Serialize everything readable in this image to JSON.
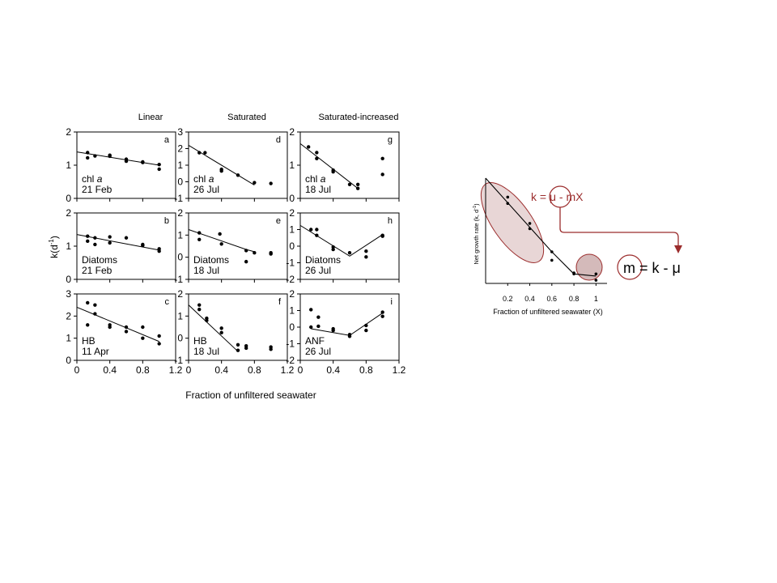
{
  "figure": {
    "shared_ylabel": "k(d",
    "shared_ylabel_sup": "-1",
    "shared_ylabel_end": ")",
    "shared_xlabel": "Fraction of unfiltered seawater",
    "column_titles": [
      "Linear",
      "Saturated",
      "Saturated-increased"
    ]
  },
  "chart_data": [
    {
      "type": "scatter",
      "panel": "a",
      "label_lines": [
        "chl a",
        "21 Feb"
      ],
      "xlim": [
        0,
        1.2
      ],
      "ylim": [
        0,
        2
      ],
      "yticks": [
        0,
        1,
        2
      ],
      "points": [
        [
          0.13,
          1.38
        ],
        [
          0.13,
          1.22
        ],
        [
          0.22,
          1.28
        ],
        [
          0.4,
          1.3
        ],
        [
          0.4,
          1.27
        ],
        [
          0.6,
          1.18
        ],
        [
          0.6,
          1.12
        ],
        [
          0.8,
          1.1
        ],
        [
          0.8,
          1.08
        ],
        [
          1.0,
          1.02
        ],
        [
          1.0,
          0.88
        ]
      ],
      "fit": [
        [
          0,
          1.4
        ],
        [
          1.0,
          1.0
        ]
      ]
    },
    {
      "type": "scatter",
      "panel": "b",
      "label_lines": [
        "Diatoms",
        "21 Feb"
      ],
      "xlim": [
        0,
        1.2
      ],
      "ylim": [
        0,
        2
      ],
      "yticks": [
        0,
        1,
        2
      ],
      "points": [
        [
          0.13,
          1.3
        ],
        [
          0.13,
          1.15
        ],
        [
          0.22,
          1.25
        ],
        [
          0.22,
          1.05
        ],
        [
          0.4,
          1.28
        ],
        [
          0.4,
          1.1
        ],
        [
          0.6,
          1.25
        ],
        [
          0.8,
          1.05
        ],
        [
          0.8,
          1.02
        ],
        [
          1.0,
          0.92
        ],
        [
          1.0,
          0.85
        ]
      ],
      "fit": [
        [
          0,
          1.35
        ],
        [
          1.0,
          0.88
        ]
      ]
    },
    {
      "type": "scatter",
      "panel": "c",
      "label_lines": [
        "HB",
        "11 Apr"
      ],
      "xlim": [
        0,
        1.2
      ],
      "ylim": [
        0,
        3
      ],
      "yticks": [
        0,
        1,
        2,
        3
      ],
      "points": [
        [
          0.13,
          2.6
        ],
        [
          0.13,
          1.6
        ],
        [
          0.22,
          2.5
        ],
        [
          0.22,
          2.1
        ],
        [
          0.4,
          1.6
        ],
        [
          0.4,
          1.5
        ],
        [
          0.6,
          1.5
        ],
        [
          0.6,
          1.3
        ],
        [
          0.8,
          1.5
        ],
        [
          0.8,
          1.0
        ],
        [
          1.0,
          1.1
        ],
        [
          1.0,
          0.75
        ]
      ],
      "fit": [
        [
          0,
          2.4
        ],
        [
          1.0,
          0.85
        ]
      ]
    },
    {
      "type": "scatter",
      "panel": "d",
      "label_lines": [
        "chl a",
        "26 Jul"
      ],
      "xlim": [
        0,
        1.2
      ],
      "ylim": [
        -1,
        3
      ],
      "yticks": [
        -1,
        0,
        1,
        2,
        3
      ],
      "points": [
        [
          0.13,
          1.75
        ],
        [
          0.2,
          1.75
        ],
        [
          0.4,
          0.75
        ],
        [
          0.4,
          0.65
        ],
        [
          0.6,
          0.4
        ],
        [
          0.8,
          -0.05
        ],
        [
          1.0,
          -0.1
        ]
      ],
      "fit": [
        [
          0,
          2.2
        ],
        [
          0.8,
          -0.2
        ]
      ]
    },
    {
      "type": "scatter",
      "panel": "e",
      "label_lines": [
        "Diatoms",
        "18 Jul"
      ],
      "xlim": [
        0,
        1.2
      ],
      "ylim": [
        -1,
        2
      ],
      "yticks": [
        -1,
        0,
        1,
        2
      ],
      "points": [
        [
          0.13,
          1.1
        ],
        [
          0.13,
          0.8
        ],
        [
          0.38,
          1.05
        ],
        [
          0.4,
          0.6
        ],
        [
          0.7,
          0.3
        ],
        [
          0.7,
          -0.2
        ],
        [
          0.8,
          0.2
        ],
        [
          1.0,
          0.2
        ],
        [
          1.0,
          0.15
        ]
      ],
      "fit": [
        [
          0,
          1.25
        ],
        [
          0.7,
          0.35
        ],
        [
          0.8,
          0.25
        ]
      ]
    },
    {
      "type": "scatter",
      "panel": "f",
      "label_lines": [
        "HB",
        "18 Jul"
      ],
      "xlim": [
        0,
        1.2
      ],
      "ylim": [
        -1,
        2
      ],
      "yticks": [
        -1,
        0,
        1,
        2
      ],
      "points": [
        [
          0.13,
          1.5
        ],
        [
          0.13,
          1.3
        ],
        [
          0.22,
          0.9
        ],
        [
          0.22,
          0.8
        ],
        [
          0.4,
          0.45
        ],
        [
          0.4,
          0.25
        ],
        [
          0.6,
          -0.3
        ],
        [
          0.6,
          -0.55
        ],
        [
          0.7,
          -0.35
        ],
        [
          0.7,
          -0.45
        ],
        [
          1.0,
          -0.4
        ],
        [
          1.0,
          -0.5
        ]
      ],
      "fit": [
        [
          0,
          1.5
        ],
        [
          0.6,
          -0.6
        ]
      ]
    },
    {
      "type": "scatter",
      "panel": "g",
      "label_lines": [
        "chl a",
        "18 Jul"
      ],
      "xlim": [
        0,
        1.2
      ],
      "ylim": [
        0,
        2
      ],
      "yticks": [
        0,
        1,
        2
      ],
      "points": [
        [
          0.1,
          1.55
        ],
        [
          0.2,
          1.38
        ],
        [
          0.2,
          1.2
        ],
        [
          0.4,
          0.85
        ],
        [
          0.4,
          0.8
        ],
        [
          0.6,
          0.42
        ],
        [
          0.7,
          0.42
        ],
        [
          0.7,
          0.3
        ],
        [
          1.0,
          1.2
        ],
        [
          1.0,
          0.72
        ]
      ],
      "fit": [
        [
          0,
          1.65
        ],
        [
          0.7,
          0.3
        ]
      ]
    },
    {
      "type": "scatter",
      "panel": "h",
      "label_lines": [
        "Diatoms",
        "26 Jul"
      ],
      "xlim": [
        0,
        1.2
      ],
      "ylim": [
        -2,
        2
      ],
      "yticks": [
        -2,
        -1,
        0,
        1,
        2
      ],
      "points": [
        [
          0.13,
          1.0
        ],
        [
          0.2,
          1.0
        ],
        [
          0.2,
          0.65
        ],
        [
          0.4,
          -0.05
        ],
        [
          0.4,
          -0.2
        ],
        [
          0.6,
          -0.4
        ],
        [
          0.8,
          -0.3
        ],
        [
          0.8,
          -0.65
        ],
        [
          1.0,
          0.65
        ],
        [
          1.0,
          0.6
        ]
      ],
      "fit": [
        [
          0,
          1.25
        ],
        [
          0.6,
          -0.6
        ],
        [
          1.0,
          0.7
        ]
      ]
    },
    {
      "type": "scatter",
      "panel": "i",
      "label_lines": [
        "ANF",
        "26 Jul"
      ],
      "xlim": [
        0,
        1.2
      ],
      "ylim": [
        -2,
        2
      ],
      "yticks": [
        -2,
        -1,
        0,
        1,
        2
      ],
      "points": [
        [
          0.13,
          1.05
        ],
        [
          0.13,
          0.0
        ],
        [
          0.22,
          0.6
        ],
        [
          0.22,
          0.05
        ],
        [
          0.4,
          -0.1
        ],
        [
          0.4,
          -0.2
        ],
        [
          0.6,
          -0.45
        ],
        [
          0.6,
          -0.55
        ],
        [
          0.8,
          0.1
        ],
        [
          0.8,
          -0.2
        ],
        [
          1.0,
          0.9
        ],
        [
          1.0,
          0.65
        ]
      ],
      "fit": [
        [
          0.13,
          -0.1
        ],
        [
          0.6,
          -0.5
        ],
        [
          1.0,
          0.85
        ]
      ]
    },
    {
      "type": "scatter",
      "panel": "schematic",
      "ylabel": "Net growth rate (k, d",
      "ylabel_sup": "-1",
      "ylabel_end": ")",
      "xlabel": "Fraction of unfiltered seawater (X)",
      "xlim": [
        0,
        1.1
      ],
      "ylim": [
        0,
        1
      ],
      "xticks": [
        0.2,
        0.4,
        0.6,
        0.8,
        1.0
      ],
      "points": [
        [
          0.2,
          0.82
        ],
        [
          0.2,
          0.76
        ],
        [
          0.4,
          0.57
        ],
        [
          0.4,
          0.52
        ],
        [
          0.6,
          0.3
        ],
        [
          0.6,
          0.22
        ],
        [
          0.8,
          0.1
        ],
        [
          0.8,
          0.09
        ],
        [
          1.0,
          0.09
        ],
        [
          1.0,
          0.03
        ]
      ],
      "fit": [
        [
          0,
          1.0
        ],
        [
          0.6,
          0.3
        ],
        [
          0.8,
          0.09
        ],
        [
          1.0,
          0.07
        ]
      ]
    }
  ],
  "annotations": {
    "equation_top": "k = μ - mX",
    "equation_m": "m",
    "equation_rest": " = k - μ",
    "accent_color": "#9b2c2c",
    "highlight_fill": "#e8d6d6",
    "highlight_fill_dark": "#d4baba"
  }
}
